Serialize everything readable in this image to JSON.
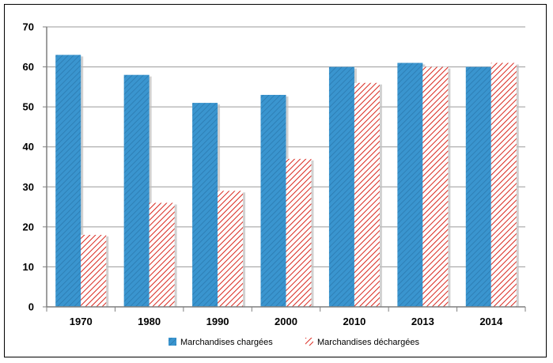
{
  "colors": {
    "charged": "#3a95cf",
    "charged_stripe": "#2b7ab0",
    "discharged_stripe": "#d9261c",
    "grid": "#9a9a9a",
    "axis": "#7f7f7f"
  },
  "chart_data": {
    "type": "bar",
    "title": "",
    "xlabel": "",
    "ylabel": "",
    "categories": [
      "1970",
      "1980",
      "1990",
      "2000",
      "2010",
      "2013",
      "2014"
    ],
    "ylim": [
      0,
      70
    ],
    "yticks": [
      "0",
      "10",
      "20",
      "30",
      "40",
      "50",
      "60",
      "70"
    ],
    "grid": true,
    "legend_position": "bottom",
    "series": [
      {
        "name": "Marchandises chargées",
        "values": [
          63,
          58,
          51,
          53,
          60,
          61,
          60
        ],
        "color": "#3a95cf",
        "pattern": "diagonal-blue"
      },
      {
        "name": "Marchandises déchargées",
        "values": [
          18,
          26,
          29,
          37,
          56,
          60,
          61
        ],
        "color": "#d9261c",
        "pattern": "diagonal-red-hatch"
      }
    ]
  }
}
